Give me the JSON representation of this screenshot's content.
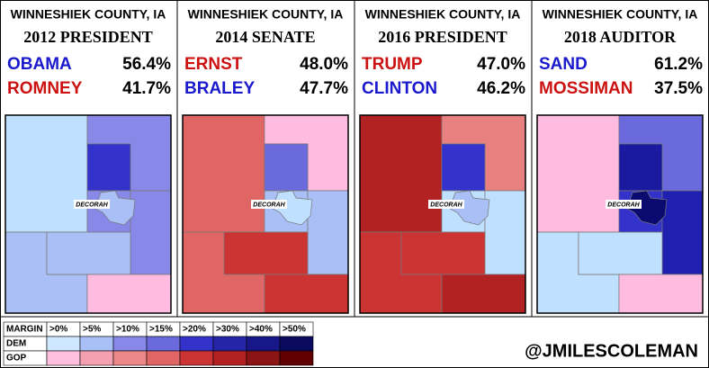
{
  "panels": [
    {
      "county": "WINNESHIEK COUNTY, IA",
      "race": "2012 PRESIDENT",
      "candidates": [
        {
          "name": "OBAMA",
          "pct": "56.4%",
          "color": "#1a1acc"
        },
        {
          "name": "ROMNEY",
          "pct": "41.7%",
          "color": "#cc1111"
        }
      ],
      "fills": [
        "#c0e0ff",
        "#8888e8",
        "#3333cc",
        "#8888e8",
        "#8888e8",
        "#aabff5",
        "#aabff5",
        "#ffbbe0",
        "#aabff5"
      ]
    },
    {
      "county": "WINNESHIEK COUNTY, IA",
      "race": "2014 SENATE",
      "candidates": [
        {
          "name": "ERNST",
          "pct": "48.0%",
          "color": "#cc1111"
        },
        {
          "name": "BRALEY",
          "pct": "47.7%",
          "color": "#1a1acc"
        }
      ],
      "fills": [
        "#e06666",
        "#ffbbe0",
        "#6a6adc",
        "#aabff5",
        "#aabff5",
        "#e06666",
        "#cc3333",
        "#cc3333",
        "#c0e0ff"
      ]
    },
    {
      "county": "WINNESHIEK COUNTY, IA",
      "race": "2016 PRESIDENT",
      "candidates": [
        {
          "name": "TRUMP",
          "pct": "47.0%",
          "color": "#cc1111"
        },
        {
          "name": "CLINTON",
          "pct": "46.2%",
          "color": "#1a1acc"
        }
      ],
      "fills": [
        "#b22222",
        "#e88080",
        "#3333cc",
        "#c0e0ff",
        "#c0e0ff",
        "#cc3333",
        "#cc3333",
        "#b22222",
        "#aabff5"
      ]
    },
    {
      "county": "WINNESHIEK COUNTY, IA",
      "race": "2018 AUDITOR",
      "candidates": [
        {
          "name": "SAND",
          "pct": "61.2%",
          "color": "#1a1acc"
        },
        {
          "name": "MOSSIMAN",
          "pct": "37.5%",
          "color": "#cc1111"
        }
      ],
      "fills": [
        "#ffbbe0",
        "#6a6adc",
        "#1a1aa0",
        "#3333cc",
        "#2020b0",
        "#c0e0ff",
        "#c0e0ff",
        "#ffbbe0",
        "#0a0a70"
      ]
    }
  ],
  "city_label": "DECORAH",
  "legend": {
    "title": "MARGIN",
    "bins": [
      ">0%",
      ">5%",
      ">10%",
      ">15%",
      ">20%",
      ">30%",
      ">40%",
      ">50%"
    ],
    "rows": [
      {
        "label": "DEM",
        "colors": [
          "#d0e8ff",
          "#a8c0f5",
          "#8888e8",
          "#6a6adc",
          "#3333cc",
          "#2525a8",
          "#17178a",
          "#0a0a60"
        ]
      },
      {
        "label": "GOP",
        "colors": [
          "#ffc0e0",
          "#f5a0b0",
          "#ee8888",
          "#e06666",
          "#cc3333",
          "#b22222",
          "#8b1515",
          "#600000"
        ]
      }
    ]
  },
  "credit": "@JMILESCOLEMAN"
}
